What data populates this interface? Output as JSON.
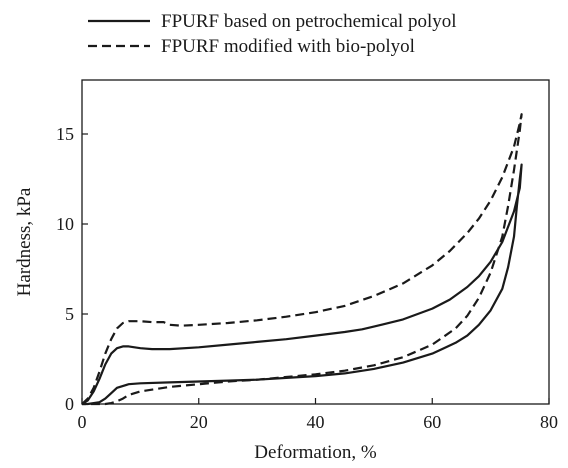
{
  "chart_data": {
    "type": "line",
    "title": "",
    "xlabel": "Deformation, %",
    "ylabel": "Hardness, kPa",
    "xlim": [
      0,
      80
    ],
    "ylim": [
      0,
      18
    ],
    "xticks": [
      0,
      20,
      40,
      60,
      80
    ],
    "yticks": [
      0,
      5,
      10,
      15
    ],
    "grid": false,
    "legend_position": "top",
    "series": [
      {
        "name": "FPURF based on petrochemical polyol",
        "style": "solid",
        "color": "#1a1a1a",
        "x": [
          0,
          1,
          2,
          3,
          4,
          5,
          6,
          7,
          8,
          9,
          10,
          12,
          15,
          20,
          25,
          30,
          35,
          40,
          45,
          48,
          50,
          55,
          60,
          63,
          66,
          68,
          70,
          72,
          74,
          75,
          75.3,
          75,
          74.5,
          74,
          73,
          72,
          70,
          68,
          66,
          64,
          62,
          60,
          55,
          50,
          45,
          40,
          35,
          30,
          25,
          20,
          15,
          10,
          8,
          6,
          5,
          4,
          3,
          2,
          1,
          0
        ],
        "y": [
          0,
          0.2,
          0.7,
          1.4,
          2.2,
          2.8,
          3.1,
          3.2,
          3.2,
          3.15,
          3.1,
          3.05,
          3.05,
          3.15,
          3.3,
          3.45,
          3.6,
          3.8,
          4.0,
          4.15,
          4.3,
          4.7,
          5.3,
          5.8,
          6.5,
          7.1,
          7.9,
          9.0,
          10.7,
          12.0,
          13.3,
          12.5,
          11.0,
          9.3,
          7.6,
          6.4,
          5.2,
          4.4,
          3.8,
          3.4,
          3.1,
          2.8,
          2.3,
          1.95,
          1.7,
          1.55,
          1.45,
          1.35,
          1.3,
          1.25,
          1.2,
          1.15,
          1.1,
          0.9,
          0.6,
          0.3,
          0.1,
          0.05,
          0,
          0
        ]
      },
      {
        "name": "FPURF modified with bio-polyol",
        "style": "dashed",
        "color": "#1a1a1a",
        "x": [
          0,
          1,
          2,
          3,
          4,
          5,
          6,
          7,
          8,
          10,
          12,
          14,
          15,
          17,
          20,
          25,
          30,
          35,
          40,
          45,
          50,
          55,
          60,
          63,
          66,
          68,
          70,
          72,
          74,
          75,
          75.3,
          75,
          74,
          73,
          72,
          70,
          68,
          66,
          64,
          60,
          55,
          50,
          45,
          40,
          35,
          30,
          25,
          20,
          15,
          10,
          8,
          7,
          6,
          5,
          4,
          2,
          0
        ],
        "y": [
          0,
          0.3,
          0.9,
          1.8,
          2.8,
          3.6,
          4.2,
          4.5,
          4.6,
          4.6,
          4.55,
          4.55,
          4.4,
          4.35,
          4.4,
          4.5,
          4.65,
          4.85,
          5.1,
          5.45,
          6.0,
          6.7,
          7.7,
          8.5,
          9.5,
          10.3,
          11.3,
          12.6,
          14.3,
          15.6,
          16.1,
          15.2,
          13.0,
          11.0,
          9.3,
          7.3,
          5.9,
          4.9,
          4.2,
          3.3,
          2.6,
          2.15,
          1.85,
          1.65,
          1.5,
          1.35,
          1.25,
          1.1,
          0.95,
          0.7,
          0.5,
          0.3,
          0.15,
          0.05,
          0,
          0,
          0
        ]
      }
    ]
  }
}
